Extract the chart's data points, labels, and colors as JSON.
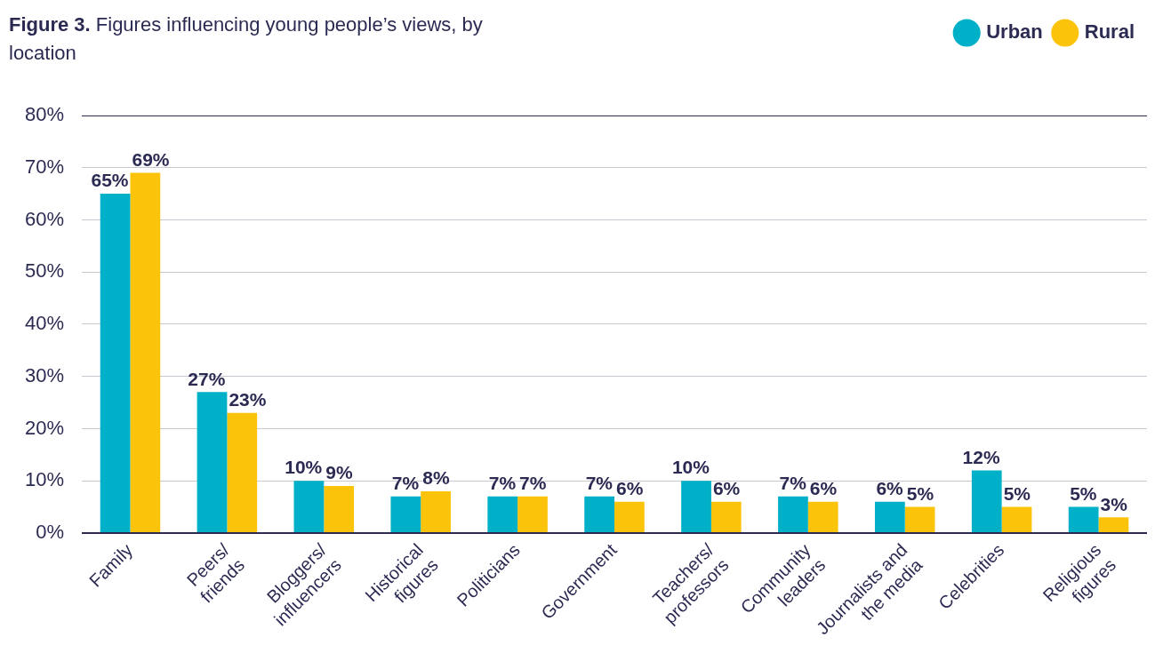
{
  "chart_data": {
    "type": "bar",
    "title": "Figure 3.",
    "subtitle": "Figures influencing young people’s views, by location",
    "categories": [
      "Family",
      "Peers/\nfriends",
      "Bloggers/\ninfluencers",
      "Historical\nfigures",
      "Politicians",
      "Government",
      "Teachers/\nprofessors",
      "Community\nleaders",
      "Journalists and\nthe media",
      "Celebrities",
      "Religious\nfigures"
    ],
    "series": [
      {
        "name": "Urban",
        "color": "#00b0c8",
        "values": [
          65,
          27,
          10,
          7,
          7,
          7,
          10,
          7,
          6,
          12,
          5
        ],
        "value_labels": [
          "65%",
          "27%",
          "10%",
          "7%",
          "7%",
          "7%",
          "10%",
          "7%",
          "6%",
          "12%",
          "5%"
        ]
      },
      {
        "name": "Rural",
        "color": "#fcc30b",
        "values": [
          69,
          23,
          9,
          8,
          7,
          6,
          6,
          6,
          5,
          5,
          3
        ],
        "value_labels": [
          "69%",
          "23%",
          "9%",
          "8%",
          "7%",
          "6%",
          "6%",
          "6%",
          "5%",
          "5%",
          "3%"
        ]
      }
    ],
    "ylim": [
      0,
      80
    ],
    "yticks": [
      {
        "value": 0,
        "label": "0%"
      },
      {
        "value": 10,
        "label": "10%"
      },
      {
        "value": 20,
        "label": "20%"
      },
      {
        "value": 30,
        "label": "30%"
      },
      {
        "value": 40,
        "label": "40%"
      },
      {
        "value": 50,
        "label": "50%"
      },
      {
        "value": 60,
        "label": "60%"
      },
      {
        "value": 70,
        "label": "70%"
      },
      {
        "value": 80,
        "label": "80%"
      }
    ],
    "grid": "y",
    "legend": "top right"
  }
}
